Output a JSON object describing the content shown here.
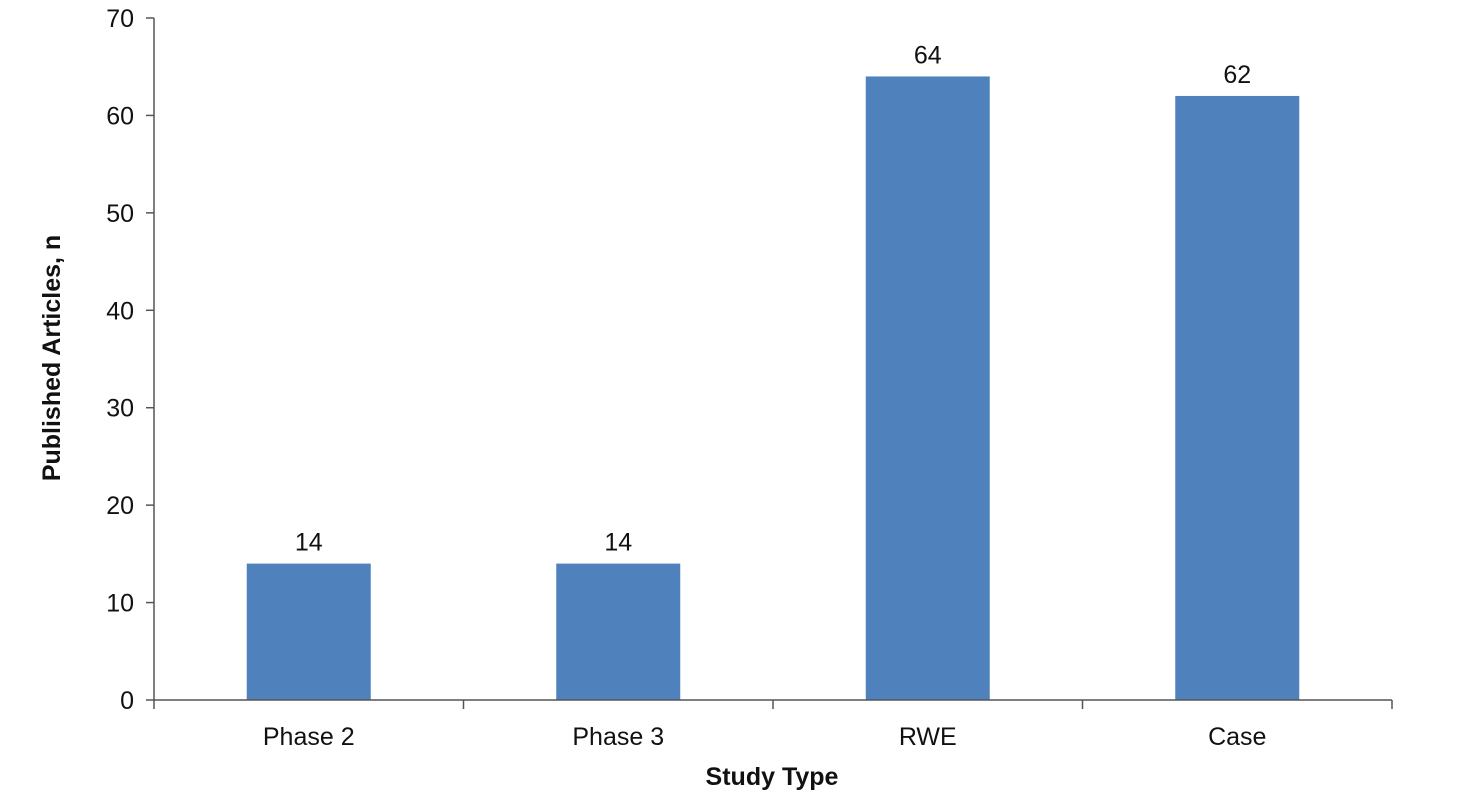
{
  "colors": {
    "bar": "#4f81bd",
    "axis": "#555555",
    "text": "#111111",
    "background": "#ffffff"
  },
  "chart_data": {
    "type": "bar",
    "title": "",
    "xlabel": "Study Type",
    "ylabel": "Published Articles, n",
    "categories": [
      "Phase 2",
      "Phase 3",
      "RWE",
      "Case"
    ],
    "values": [
      14,
      14,
      64,
      62
    ],
    "data_labels": [
      "14",
      "14",
      "64",
      "62"
    ],
    "ylim": [
      0,
      70
    ],
    "yticks": [
      0,
      10,
      20,
      30,
      40,
      50,
      60,
      70
    ],
    "grid": false,
    "legend": "none"
  }
}
